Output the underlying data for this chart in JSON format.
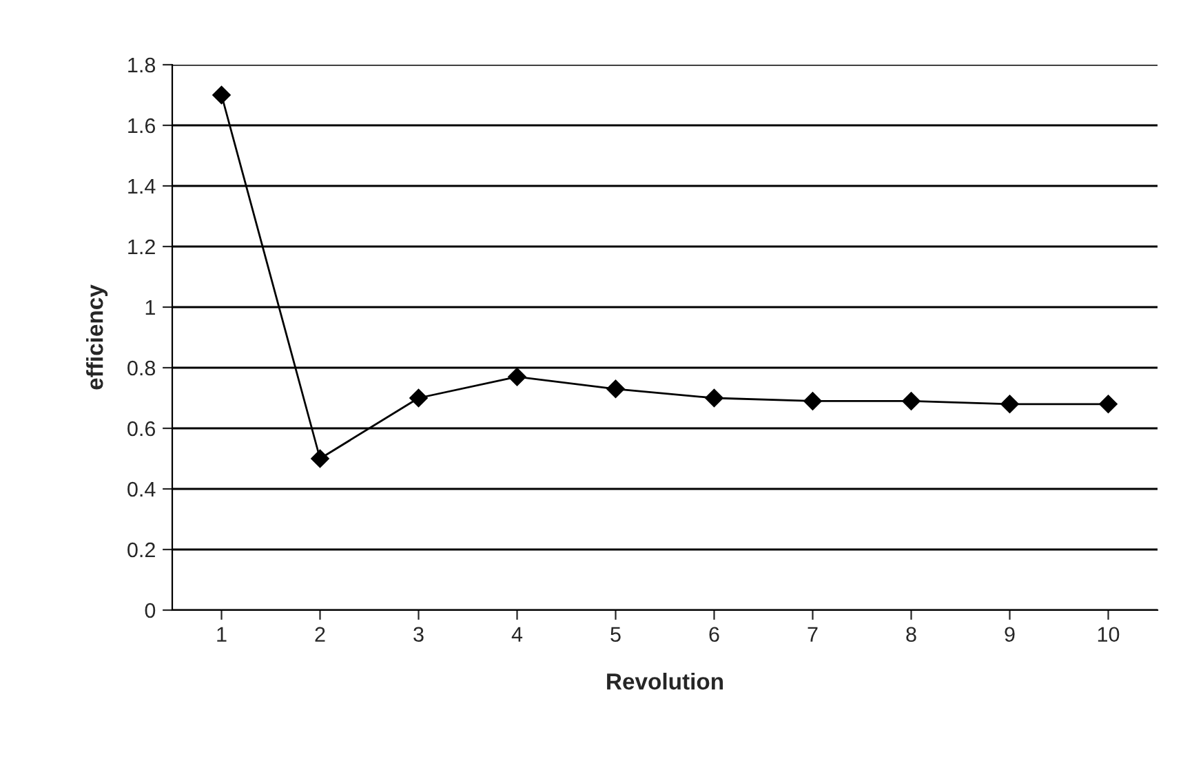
{
  "chart_data": {
    "type": "line",
    "xlabel": "Revolution",
    "ylabel": "efficiency",
    "categories": [
      "1",
      "2",
      "3",
      "4",
      "5",
      "6",
      "7",
      "8",
      "9",
      "10"
    ],
    "series": [
      {
        "color": "#000000",
        "values": [
          1.7,
          0.5,
          0.7,
          0.77,
          0.73,
          0.7,
          0.69,
          0.69,
          0.68,
          0.68
        ]
      }
    ],
    "ylim": [
      0,
      1.8
    ],
    "yticks": [
      0,
      0.2,
      0.4,
      0.6,
      0.8,
      1,
      1.2,
      1.4,
      1.6,
      1.8
    ],
    "grid": "y",
    "marker": "diamond",
    "line_style": "solid"
  }
}
